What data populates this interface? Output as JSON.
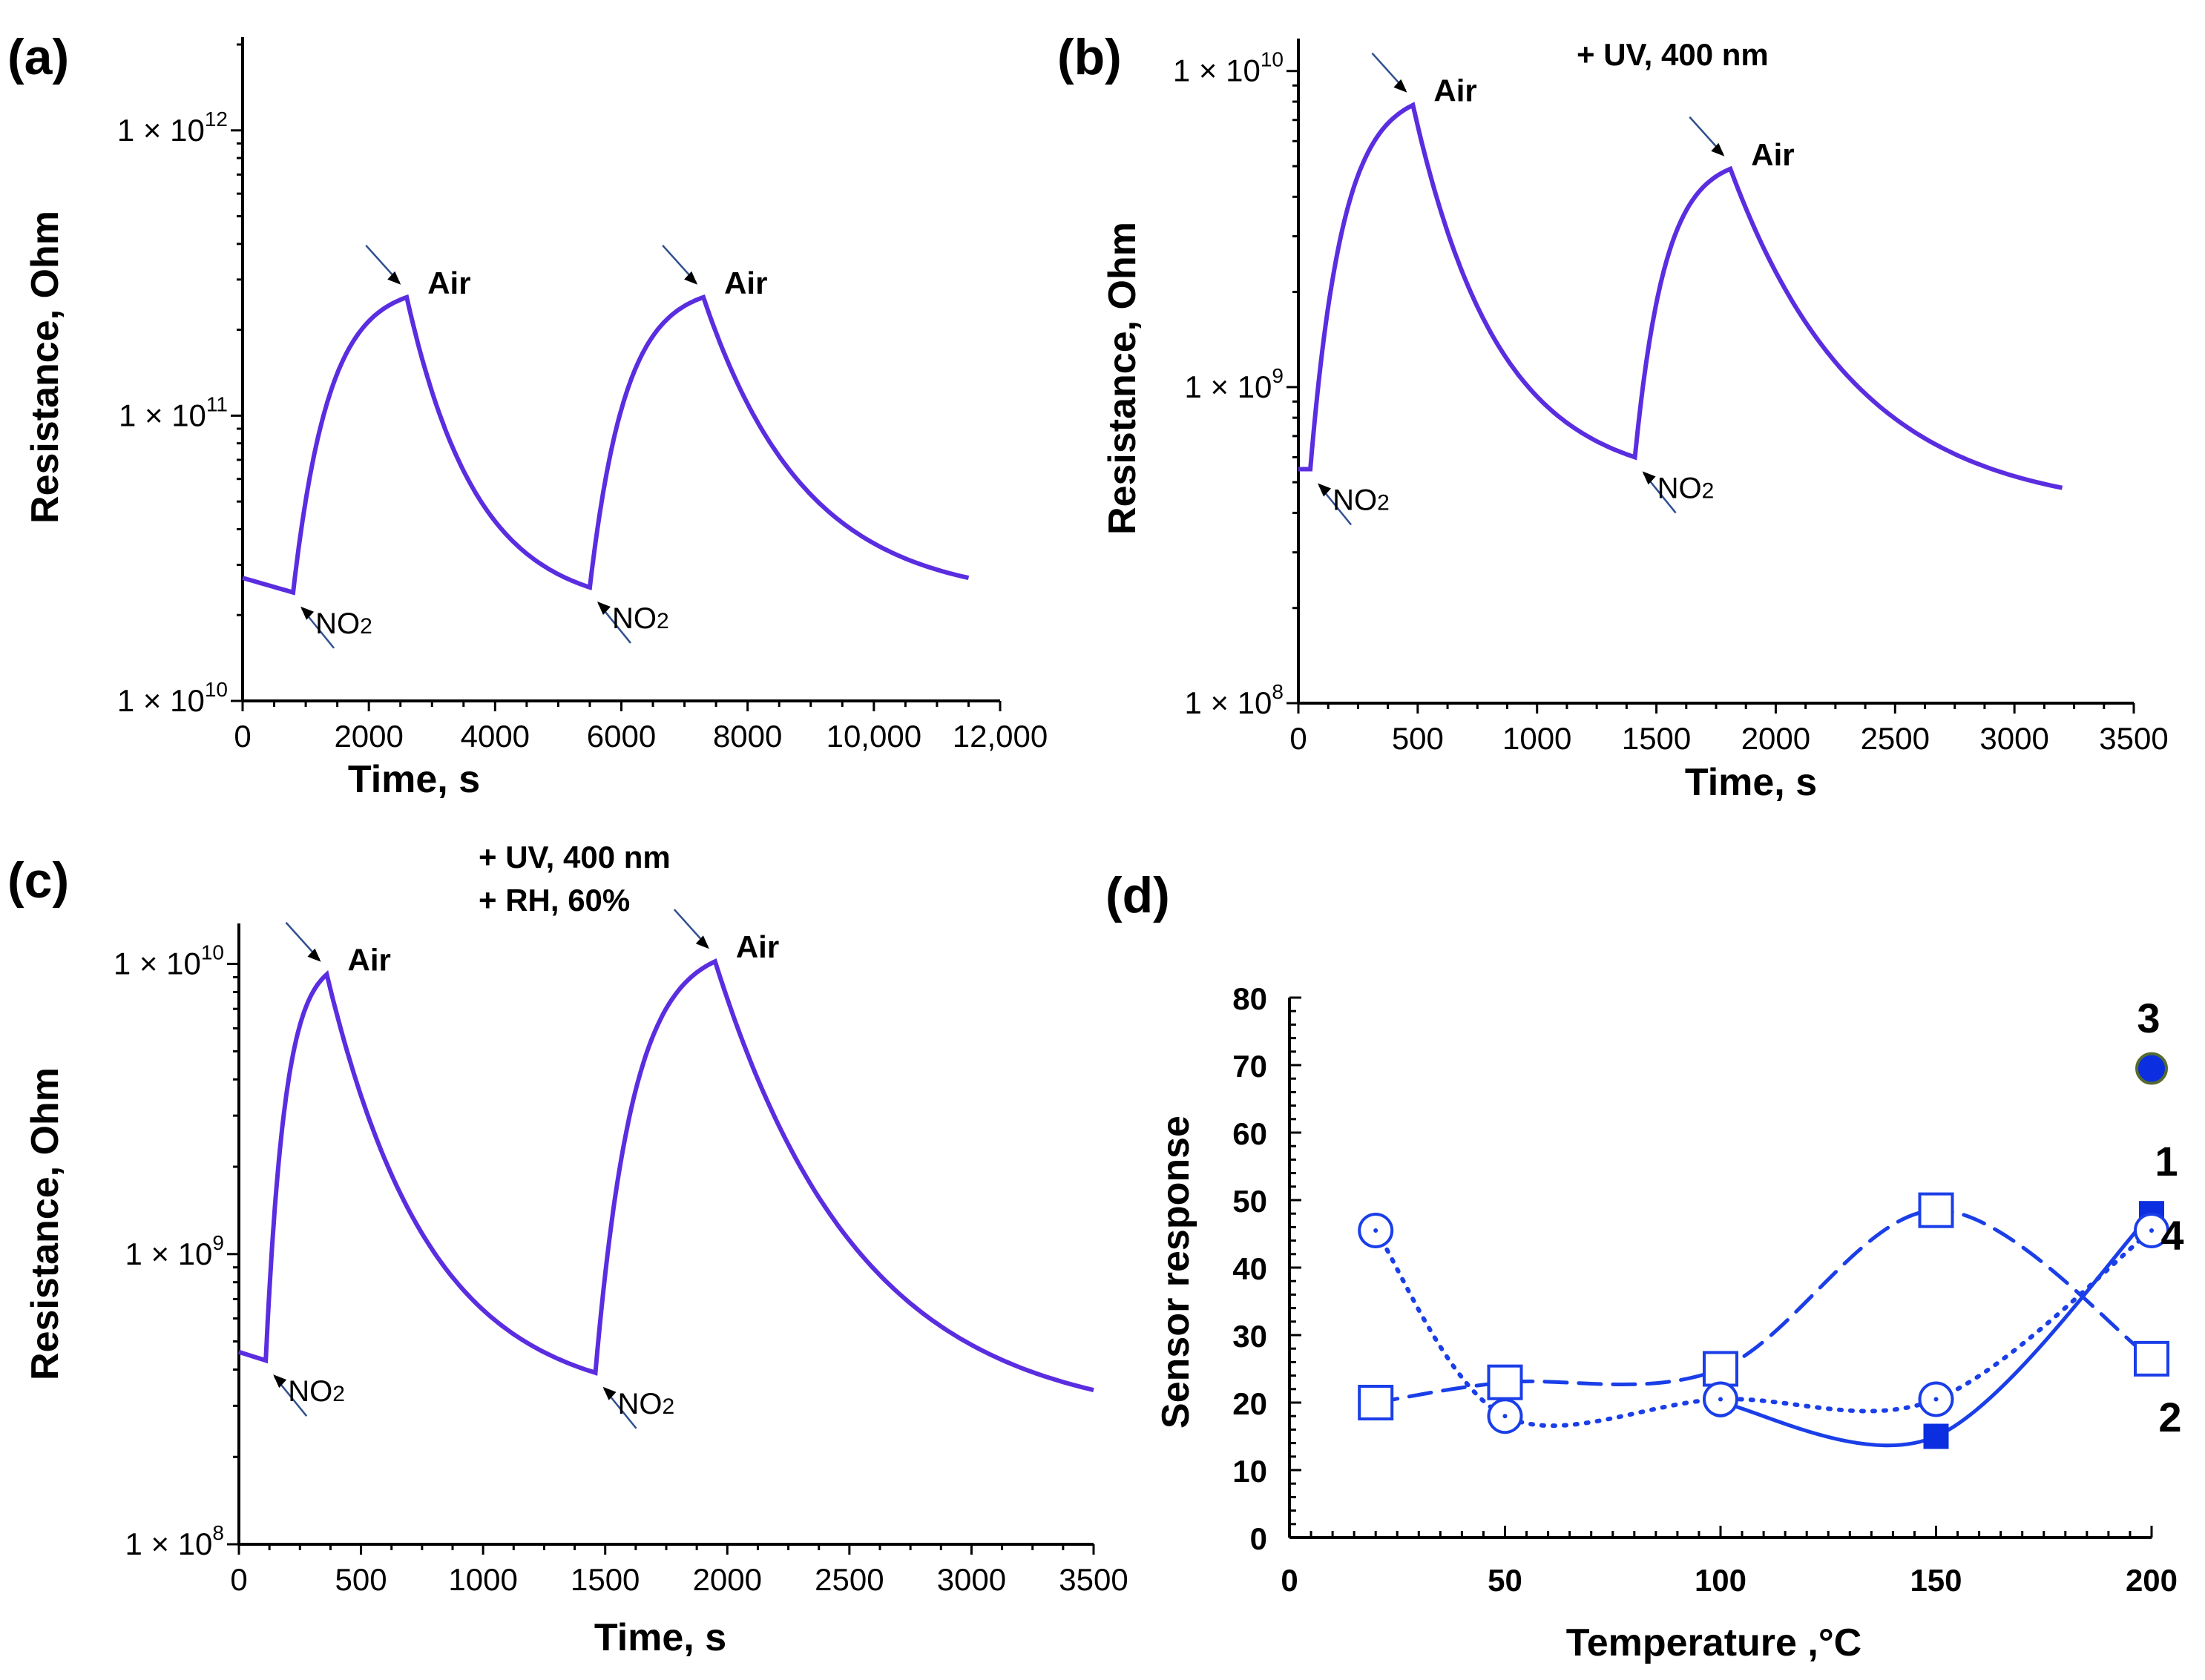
{
  "chart_data": [
    {
      "id": "a",
      "type": "line",
      "panel_label": "(a)",
      "xlabel": "Time, s",
      "ylabel": "Resistance, Ohm",
      "yscale": "log",
      "xlim": [
        0,
        12000
      ],
      "ylim": [
        10000000000.0,
        2000000000000.0
      ],
      "x_ticks": [
        0,
        2000,
        4000,
        6000,
        8000,
        10000,
        12000
      ],
      "x_tick_labels": [
        "0",
        "2000",
        "4000",
        "6000",
        "8000",
        "10,000",
        "12,000"
      ],
      "y_ticks": [
        10000000000.0,
        100000000000.0,
        1000000000000.0
      ],
      "y_tick_labels": [
        {
          "base": "1 × 10",
          "exp": "10"
        },
        {
          "base": "1 × 10",
          "exp": "11"
        },
        {
          "base": "1 × 10",
          "exp": "12"
        }
      ],
      "cycles": [
        {
          "no2_on": 800,
          "air_on": 2600,
          "r_start": 24000000000.0,
          "r_peak": 260000000000.0,
          "r_end": 25000000000.0
        },
        {
          "no2_on": 5500,
          "air_on": 7300,
          "r_start": 25000000000.0,
          "r_peak": 260000000000.0,
          "r_end": 27000000000.0
        }
      ],
      "baseline": {
        "x0": 0,
        "r0": 27000000000.0
      },
      "x_end": 11500,
      "condition_text": [],
      "annotations": [
        {
          "text": "Air",
          "x": 2600,
          "r": 260000000000.0,
          "side": "above"
        },
        {
          "text": "Air",
          "x": 7300,
          "r": 260000000000.0,
          "side": "above"
        },
        {
          "text": "NO",
          "sub": "2",
          "x": 800,
          "r": 24000000000.0,
          "side": "below"
        },
        {
          "text": "NO",
          "sub": "2",
          "x": 5500,
          "r": 25000000000.0,
          "side": "below"
        }
      ]
    },
    {
      "id": "b",
      "type": "line",
      "panel_label": "(b)",
      "xlabel": "Time, s",
      "ylabel": "Resistance, Ohm",
      "yscale": "log",
      "xlim": [
        0,
        3500
      ],
      "ylim": [
        100000000.0,
        12000000000.0
      ],
      "x_ticks": [
        0,
        500,
        1000,
        1500,
        2000,
        2500,
        3000,
        3500
      ],
      "x_tick_labels": [
        "0",
        "500",
        "1000",
        "1500",
        "2000",
        "2500",
        "3000",
        "3500"
      ],
      "y_ticks": [
        100000000.0,
        1000000000.0,
        10000000000.0
      ],
      "y_tick_labels": [
        {
          "base": "1 × 10",
          "exp": "8"
        },
        {
          "base": "1 × 10",
          "exp": "9"
        },
        {
          "base": "1 × 10",
          "exp": "10"
        }
      ],
      "cycles": [
        {
          "no2_on": 50,
          "air_on": 480,
          "r_start": 550000000.0,
          "r_peak": 7800000000.0,
          "r_end": 600000000.0
        },
        {
          "no2_on": 1410,
          "air_on": 1810,
          "r_start": 600000000.0,
          "r_peak": 4900000000.0,
          "r_end": 480000000.0
        }
      ],
      "baseline": {
        "x0": 0,
        "r0": 550000000.0
      },
      "x_end": 3200,
      "condition_text": [
        "+ UV, 400 nm"
      ],
      "annotations": [
        {
          "text": "Air",
          "x": 480,
          "r": 7800000000.0,
          "side": "above"
        },
        {
          "text": "Air",
          "x": 1810,
          "r": 4900000000.0,
          "side": "above"
        },
        {
          "text": "NO",
          "sub": "2",
          "x": 50,
          "r": 550000000.0,
          "side": "below"
        },
        {
          "text": "NO",
          "sub": "2",
          "x": 1410,
          "r": 600000000.0,
          "side": "below"
        }
      ]
    },
    {
      "id": "c",
      "type": "line",
      "panel_label": "(c)",
      "xlabel": "Time, s",
      "ylabel": "Resistance, Ohm",
      "yscale": "log",
      "xlim": [
        0,
        3500
      ],
      "ylim": [
        100000000.0,
        13000000000.0
      ],
      "x_ticks": [
        0,
        500,
        1000,
        1500,
        2000,
        2500,
        3000,
        3500
      ],
      "x_tick_labels": [
        "0",
        "500",
        "1000",
        "1500",
        "2000",
        "2500",
        "3000",
        "3500"
      ],
      "y_ticks": [
        100000000.0,
        1000000000.0,
        10000000000.0
      ],
      "y_tick_labels": [
        {
          "base": "1 × 10",
          "exp": "8"
        },
        {
          "base": "1 × 10",
          "exp": "9"
        },
        {
          "base": "1 × 10",
          "exp": "10"
        }
      ],
      "cycles": [
        {
          "no2_on": 110,
          "air_on": 360,
          "r_start": 430000000.0,
          "r_peak": 9200000000.0,
          "r_end": 390000000.0
        },
        {
          "no2_on": 1460,
          "air_on": 1950,
          "r_start": 390000000.0,
          "r_peak": 10200000000.0,
          "r_end": 340000000.0
        }
      ],
      "baseline": {
        "x0": 0,
        "r0": 460000000.0
      },
      "x_end": 3500,
      "condition_text": [
        "+ UV, 400 nm",
        "+ RH, 60%"
      ],
      "annotations": [
        {
          "text": "Air",
          "x": 360,
          "r": 9200000000.0,
          "side": "above"
        },
        {
          "text": "Air",
          "x": 1950,
          "r": 10200000000.0,
          "side": "above"
        },
        {
          "text": "NO",
          "sub": "2",
          "x": 110,
          "r": 430000000.0,
          "side": "below"
        },
        {
          "text": "NO",
          "sub": "2",
          "x": 1460,
          "r": 390000000.0,
          "side": "below"
        }
      ]
    },
    {
      "id": "d",
      "type": "line",
      "panel_label": "(d)",
      "xlabel": "Temperature ,°C",
      "ylabel": "Sensor response",
      "xlim": [
        0,
        200
      ],
      "ylim": [
        0,
        80
      ],
      "x_ticks": [
        0,
        50,
        100,
        150,
        200
      ],
      "y_ticks": [
        0,
        10,
        20,
        30,
        40,
        50,
        60,
        70,
        80
      ],
      "series": [
        {
          "name": "1",
          "style": "solid",
          "marker": "filled-square-circle",
          "x": [
            100,
            150,
            200
          ],
          "y": [
            20,
            15,
            48
          ]
        },
        {
          "name": "2",
          "style": "dashed",
          "marker": "open-square",
          "x": [
            20,
            50,
            100,
            150,
            200
          ],
          "y": [
            20,
            23,
            25,
            48.5,
            26.5
          ]
        },
        {
          "name": "3",
          "style": "none",
          "marker": "filled-circle",
          "x": [
            200
          ],
          "y": [
            69.5
          ]
        },
        {
          "name": "4",
          "style": "dotted",
          "marker": "open-circle-dot",
          "x": [
            20,
            50,
            100,
            150,
            200
          ],
          "y": [
            45.5,
            18,
            20.5,
            20.5,
            45.5
          ]
        }
      ],
      "series_labels": [
        "1",
        "2",
        "3",
        "4"
      ]
    }
  ],
  "colors": {
    "curve": "#5a2de0",
    "series": "#1a3ee8",
    "filled": "#0a2ee0"
  }
}
